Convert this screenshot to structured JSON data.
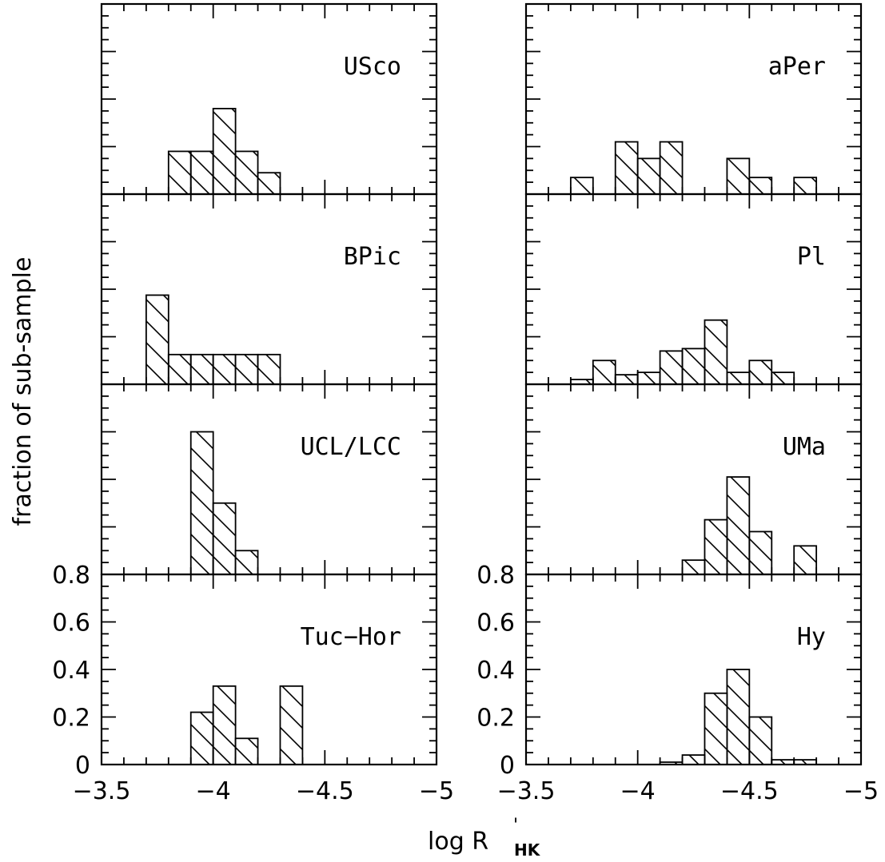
{
  "figure": {
    "ylabel": "fraction of sub-sample",
    "xlabel_main": "log R",
    "xlabel_super": "'",
    "xlabel_sub": "HK"
  },
  "chart_data": [
    {
      "type": "bar",
      "panel": "USco",
      "title": "USco",
      "xlim": [
        -3.5,
        -5
      ],
      "ylim": [
        0,
        0.8
      ],
      "bin_width": 0.1,
      "bins": [
        {
          "x": -3.85,
          "y": 0.18
        },
        {
          "x": -3.95,
          "y": 0.18
        },
        {
          "x": -4.05,
          "y": 0.36
        },
        {
          "x": -4.15,
          "y": 0.18
        },
        {
          "x": -4.25,
          "y": 0.09
        }
      ]
    },
    {
      "type": "bar",
      "panel": "BPic",
      "title": "BPic",
      "xlim": [
        -3.5,
        -5
      ],
      "ylim": [
        0,
        0.8
      ],
      "bin_width": 0.1,
      "bins": [
        {
          "x": -3.75,
          "y": 0.375
        },
        {
          "x": -3.85,
          "y": 0.125
        },
        {
          "x": -3.95,
          "y": 0.125
        },
        {
          "x": -4.05,
          "y": 0.125
        },
        {
          "x": -4.15,
          "y": 0.125
        },
        {
          "x": -4.25,
          "y": 0.125
        }
      ]
    },
    {
      "type": "bar",
      "panel": "UCL/LCC",
      "title": "UCL/LCC",
      "xlim": [
        -3.5,
        -5
      ],
      "ylim": [
        0,
        0.8
      ],
      "bin_width": 0.1,
      "bins": [
        {
          "x": -3.95,
          "y": 0.6
        },
        {
          "x": -4.05,
          "y": 0.3
        },
        {
          "x": -4.15,
          "y": 0.1
        }
      ]
    },
    {
      "type": "bar",
      "panel": "Tuc-Hor",
      "title": "Tuc−Hor",
      "xlim": [
        -3.5,
        -5
      ],
      "ylim": [
        0,
        0.8
      ],
      "bin_width": 0.1,
      "bins": [
        {
          "x": -3.95,
          "y": 0.22
        },
        {
          "x": -4.05,
          "y": 0.33
        },
        {
          "x": -4.15,
          "y": 0.11
        },
        {
          "x": -4.35,
          "y": 0.33
        }
      ]
    },
    {
      "type": "bar",
      "panel": "aPer",
      "title": "aPer",
      "xlim": [
        -3.5,
        -5
      ],
      "ylim": [
        0,
        0.8
      ],
      "bin_width": 0.1,
      "bins": [
        {
          "x": -3.75,
          "y": 0.07
        },
        {
          "x": -3.95,
          "y": 0.22
        },
        {
          "x": -4.05,
          "y": 0.15
        },
        {
          "x": -4.15,
          "y": 0.22
        },
        {
          "x": -4.45,
          "y": 0.15
        },
        {
          "x": -4.55,
          "y": 0.07
        },
        {
          "x": -4.75,
          "y": 0.07
        }
      ]
    },
    {
      "type": "bar",
      "panel": "Pl",
      "title": "Pl",
      "xlim": [
        -3.5,
        -5
      ],
      "ylim": [
        0,
        0.8
      ],
      "bin_width": 0.1,
      "bins": [
        {
          "x": -3.75,
          "y": 0.02
        },
        {
          "x": -3.85,
          "y": 0.1
        },
        {
          "x": -3.95,
          "y": 0.04
        },
        {
          "x": -4.05,
          "y": 0.05
        },
        {
          "x": -4.15,
          "y": 0.14
        },
        {
          "x": -4.25,
          "y": 0.15
        },
        {
          "x": -4.35,
          "y": 0.27
        },
        {
          "x": -4.45,
          "y": 0.05
        },
        {
          "x": -4.55,
          "y": 0.1
        },
        {
          "x": -4.65,
          "y": 0.05
        }
      ]
    },
    {
      "type": "bar",
      "panel": "UMa",
      "title": "UMa",
      "xlim": [
        -3.5,
        -5
      ],
      "ylim": [
        0,
        0.8
      ],
      "bin_width": 0.1,
      "bins": [
        {
          "x": -4.25,
          "y": 0.06
        },
        {
          "x": -4.35,
          "y": 0.23
        },
        {
          "x": -4.45,
          "y": 0.41
        },
        {
          "x": -4.55,
          "y": 0.18
        },
        {
          "x": -4.75,
          "y": 0.12
        }
      ]
    },
    {
      "type": "bar",
      "panel": "Hy",
      "title": "Hy",
      "xlim": [
        -3.5,
        -5
      ],
      "ylim": [
        0,
        0.8
      ],
      "bin_width": 0.1,
      "bins": [
        {
          "x": -4.15,
          "y": 0.01
        },
        {
          "x": -4.25,
          "y": 0.04
        },
        {
          "x": -4.35,
          "y": 0.3
        },
        {
          "x": -4.45,
          "y": 0.4
        },
        {
          "x": -4.55,
          "y": 0.2
        },
        {
          "x": -4.65,
          "y": 0.02
        },
        {
          "x": -4.75,
          "y": 0.02
        }
      ]
    }
  ],
  "axes": {
    "yticks": [
      "0",
      "0.2",
      "0.4",
      "0.6",
      "0.8"
    ],
    "xticks": [
      "−3.5",
      "−4",
      "−4.5",
      "−5"
    ],
    "xtick_values": [
      -3.5,
      -4,
      -4.5,
      -5
    ],
    "ytick_values": [
      0,
      0.2,
      0.4,
      0.6,
      0.8
    ]
  }
}
